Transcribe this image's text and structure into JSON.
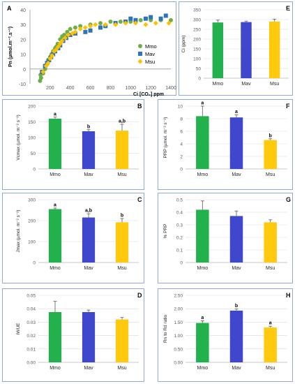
{
  "colors": {
    "Mmo": "#70AD47",
    "Mav": "#2E75B6",
    "Msu": "#FFC000",
    "bar_green": "#22B14C",
    "bar_blue": "#3F48CC",
    "bar_yellow": "#FFC90E",
    "panel_border": "#8FAADC",
    "grid": "#D9D9D9",
    "axis_text": "#595959"
  },
  "chart_data": [
    {
      "panel": "A",
      "type": "scatter",
      "ylabel": "Pn (µmol.m⁻².s⁻¹)",
      "xlabel": "Ci [CO₂] ppm",
      "xlim": [
        0,
        1400
      ],
      "ylim": [
        -10,
        40
      ],
      "xticks": [
        "200",
        "400",
        "600",
        "800",
        "1000",
        "1200",
        "1400"
      ],
      "yticks": [
        "-10",
        "0",
        "10",
        "20",
        "30",
        "40"
      ],
      "legend_position": "right",
      "series": [
        {
          "name": "Mmo",
          "marker": "circle",
          "points": [
            [
              100,
              -8
            ],
            [
              105,
              -4
            ],
            [
              110,
              -6
            ],
            [
              130,
              -3
            ],
            [
              150,
              0
            ],
            [
              165,
              3
            ],
            [
              180,
              6
            ],
            [
              200,
              8
            ],
            [
              215,
              10
            ],
            [
              230,
              12
            ],
            [
              250,
              14
            ],
            [
              260,
              15
            ],
            [
              275,
              17
            ],
            [
              300,
              20
            ],
            [
              320,
              22
            ],
            [
              340,
              23
            ],
            [
              370,
              25
            ],
            [
              400,
              27
            ],
            [
              450,
              28
            ],
            [
              500,
              29
            ],
            [
              600,
              30
            ],
            [
              700,
              31
            ],
            [
              800,
              32
            ],
            [
              900,
              32
            ],
            [
              1000,
              32
            ],
            [
              1100,
              33
            ],
            [
              1200,
              33
            ],
            [
              1300,
              33
            ],
            [
              1400,
              33
            ]
          ]
        },
        {
          "name": "Mav",
          "marker": "square",
          "points": [
            [
              120,
              -2
            ],
            [
              150,
              2
            ],
            [
              170,
              4
            ],
            [
              190,
              6
            ],
            [
              210,
              8
            ],
            [
              230,
              10
            ],
            [
              250,
              12
            ],
            [
              280,
              14
            ],
            [
              300,
              16
            ],
            [
              330,
              19
            ],
            [
              360,
              21
            ],
            [
              400,
              23
            ],
            [
              450,
              24
            ],
            [
              550,
              25
            ],
            [
              600,
              26
            ],
            [
              700,
              28
            ],
            [
              750,
              29
            ],
            [
              850,
              31
            ],
            [
              950,
              32
            ],
            [
              1000,
              34
            ],
            [
              1050,
              33
            ],
            [
              1150,
              34
            ],
            [
              1200,
              35
            ],
            [
              1300,
              34
            ],
            [
              1350,
              36
            ]
          ]
        },
        {
          "name": "Msu",
          "marker": "diamond",
          "points": [
            [
              130,
              -2
            ],
            [
              160,
              2
            ],
            [
              180,
              4
            ],
            [
              200,
              7
            ],
            [
              220,
              9
            ],
            [
              240,
              12
            ],
            [
              260,
              13
            ],
            [
              280,
              15
            ],
            [
              300,
              17
            ],
            [
              320,
              19
            ],
            [
              350,
              21
            ],
            [
              380,
              23
            ],
            [
              420,
              24
            ],
            [
              450,
              25
            ],
            [
              500,
              27
            ],
            [
              550,
              28
            ],
            [
              600,
              29
            ],
            [
              650,
              30
            ],
            [
              750,
              30
            ],
            [
              850,
              30
            ],
            [
              950,
              31
            ],
            [
              1050,
              31
            ],
            [
              1150,
              30
            ],
            [
              1250,
              31
            ],
            [
              1380,
              31
            ]
          ]
        }
      ]
    },
    {
      "panel": "E",
      "type": "bar",
      "ylabel": "Ci (ppm)",
      "categories": [
        "Mmo",
        "Mav",
        "Msu"
      ],
      "values": [
        285,
        287,
        290
      ],
      "errors": [
        12,
        5,
        12
      ],
      "letters": [
        "",
        "",
        ""
      ],
      "ylim": [
        0,
        350
      ],
      "yticks": [
        "0",
        "50",
        "100",
        "150",
        "200",
        "250",
        "300",
        "350"
      ]
    },
    {
      "panel": "B",
      "type": "bar",
      "ylabel": "Vcmax (µmol. m⁻² s⁻¹)",
      "categories": [
        "Mmo",
        "Mav",
        "Msu"
      ],
      "values": [
        160,
        120,
        122
      ],
      "errors": [
        5,
        5,
        20
      ],
      "letters": [
        "a",
        "b",
        "a,b"
      ],
      "ylim": [
        0,
        200
      ],
      "yticks": [
        "0",
        "50",
        "100",
        "150",
        "200"
      ]
    },
    {
      "panel": "F",
      "type": "bar",
      "ylabel": "PRP (µmol. m⁻² s⁻¹)",
      "categories": [
        "Mmo",
        "Mav",
        "Msu"
      ],
      "values": [
        8.4,
        8.2,
        4.6
      ],
      "errors": [
        1.6,
        0.4,
        0.2
      ],
      "letters": [
        "a",
        "a",
        "b"
      ],
      "ylim": [
        0,
        10
      ],
      "yticks": [
        "0",
        "2",
        "4",
        "6",
        "8",
        "10"
      ]
    },
    {
      "panel": "C",
      "type": "bar",
      "ylabel": "Jmax (µmol. m⁻² s⁻¹)",
      "categories": [
        "Mmo",
        "Mav",
        "Msu"
      ],
      "values": [
        255,
        215,
        192
      ],
      "errors": [
        5,
        18,
        18
      ],
      "letters": [
        "a",
        "a,b",
        "b"
      ],
      "ylim": [
        0,
        300
      ],
      "yticks": [
        "0",
        "100",
        "200",
        "300"
      ]
    },
    {
      "panel": "G",
      "type": "bar",
      "ylabel": "% PRP",
      "categories": [
        "Mmo",
        "Mav",
        "Msu"
      ],
      "values": [
        0.42,
        0.37,
        0.32
      ],
      "errors": [
        0.07,
        0.04,
        0.02
      ],
      "letters": [
        "",
        "",
        ""
      ],
      "ylim": [
        0,
        0.5
      ],
      "yticks": [
        "0",
        "0.1",
        "0.2",
        "0.3",
        "0.4",
        "0.5"
      ]
    },
    {
      "panel": "D",
      "type": "bar",
      "ylabel": "IWUE",
      "categories": [
        "Mmo",
        "Mav",
        "Msu"
      ],
      "values": [
        0.0375,
        0.0375,
        0.032
      ],
      "errors": [
        0.008,
        0.0015,
        0.0015
      ],
      "letters": [
        "",
        "",
        ""
      ],
      "ylim": [
        0,
        0.05
      ],
      "yticks": [
        "0.00",
        "0.01",
        "0.02",
        "0.03",
        "0.04",
        "0.05"
      ]
    },
    {
      "panel": "H",
      "type": "bar",
      "ylabel": "Rn to Rd ratio",
      "categories": [
        "Mmo",
        "Mav",
        "Msu"
      ],
      "values": [
        1.47,
        1.93,
        1.3
      ],
      "errors": [
        0.08,
        0.06,
        0.05
      ],
      "letters": [
        "a",
        "b",
        "a"
      ],
      "ylim": [
        0,
        2.5
      ],
      "yticks": [
        "0.00",
        "0.50",
        "1.00",
        "1.50",
        "2.00",
        "2.50"
      ]
    }
  ]
}
